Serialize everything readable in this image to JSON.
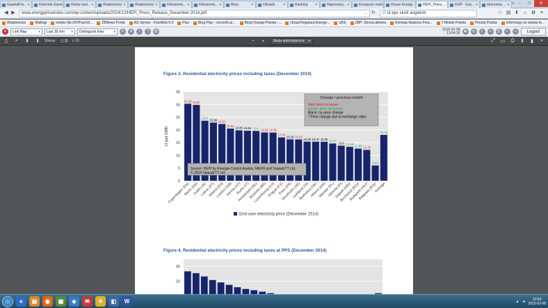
{
  "tabs": [
    "GazetaPra...",
    "Dziennik Gazet...",
    "Dania nast...",
    "Wiadomości",
    "Wiadomości",
    "Dokument...",
    "Dokument...",
    "Bosy",
    "Obrazki",
    "Ranking",
    "Najnowszy...",
    "European resid...",
    "House Energy ...",
    "HEPI_Press_...",
    "DGP - Gaz...",
    "ekonomia ..."
  ],
  "nav": {
    "url": "www.energypriceindex.com/wp-content/uploads/2014/12/HEPI_Press_Release_December-2014.pdf",
    "search": "ot pps skrót angielski"
  },
  "bookmarks": [
    "Wiadomości",
    "Mailingi",
    "Indeks file:///////Faz1/d...",
    "ZBNews Portal",
    "AG Serwis - FotoWeb 6.0",
    "Plus",
    "Blog Play - rzecznik pr...",
    "Blogi Orange Polska -...",
    "Urząd Regulacji Energe...",
    "UKE",
    "ZBP: Strona główna",
    "Komisja Nadzoru Fina...",
    "T-Mobile Polska",
    "Poczta Polska",
    "Informacje ze świata te..."
  ],
  "addon": {
    "map": "Link Map",
    "range": "Last 30 min",
    "mode": "Distinguish links",
    "date": "2015-01-08",
    "time": "13:54:35",
    "logout": "Logout"
  },
  "pdf": {
    "page_label": "Strona:",
    "page": "5",
    "of": "z 10",
    "zoom": "Skala automatyczna"
  },
  "doc": {
    "fig3_title": "Figure 3. Residential electricity prices including taxes (December 2014)",
    "fig4_title": "Figure 4. Residential electricity prices including taxes at PPS (December 2014)"
  },
  "chart_data": [
    {
      "type": "bar",
      "title": "Figure 3. Residential electricity prices including taxes (December 2014)",
      "ylabel": "ct per kWh",
      "ylim": [
        0,
        35
      ],
      "yticks": [
        0,
        5,
        10,
        15,
        20,
        25,
        30,
        35
      ],
      "categories": [
        "Copenhagen (DK)",
        "Berlin (DE)",
        "Dublin (IE)",
        "Lisbon (PT)",
        "Madrid (ES)",
        "London (GB)",
        "Vienna (AT)",
        "Rome (IT)",
        "Amsterdam (NL)",
        "Brussels (BE)",
        "Luxembourg (LU)",
        "Prague (CZ)",
        "Paris (FR)",
        "Stockholm (SE)",
        "Ljubljana (SI)",
        "Bratislava (SK)",
        "Athens (GR)",
        "Warsaw (PL)",
        "Helsinki (FI)",
        "Zagreb (HR)*",
        "Bucharest (RO)*",
        "Budapest (HU)*",
        "Belgrade (RS)*",
        "Average"
      ],
      "series": [
        {
          "name": "End-user electricity price (December 2014)",
          "values": [
            30.28,
            29.87,
            23.6,
            22.86,
            22.31,
            20.53,
            19.85,
            19.69,
            19.6,
            18.99,
            18.95,
            17.05,
            16.29,
            16.25,
            15.38,
            15.37,
            15.35,
            14.67,
            13.8,
            13.35,
            12.66,
            12.15,
            6.02,
            18.04
          ],
          "label_colors": [
            "#d41f1f",
            "#d41f1f",
            "#22a84a",
            "#000000",
            "#d41f1f",
            "#d41f1f",
            "#000000",
            "#000000",
            "#22a84a",
            "#d41f1f",
            "#d41f1f",
            "#d41f1f",
            "#000000",
            "#d41f1f",
            "#000000",
            "#000000",
            "#000000",
            "#22a84a",
            "#000000",
            "#22a84a",
            "#22a84a",
            "#d41f1f",
            "#22a84a",
            "#22a84a"
          ]
        }
      ],
      "legend_box": {
        "title": "Change / previous month",
        "lines": [
          {
            "text": "Red: price increase",
            "color": "#d41f1f"
          },
          {
            "text": "Green: price decrease",
            "color": "#22a84a"
          },
          {
            "text": "Black: no price change",
            "color": "#000000"
          },
          {
            "text": "* Price change due to exchange rates",
            "color": "#000000"
          }
        ]
      },
      "source_box": [
        "Source: HEPI by Energie-Control Austria, MEKH and VaasaETT Ltd.",
        "© 2014 VaasaETT Ltd."
      ],
      "bar_color": "#16256b",
      "grid": true
    },
    {
      "type": "bar",
      "title": "Figure 4. Residential electricity prices including taxes at PPS (December 2014)",
      "yticks": [
        20,
        25,
        30
      ],
      "ylim": [
        20,
        30
      ],
      "values": [
        28.3,
        27.7,
        26.6,
        25.4,
        24.6,
        23.8,
        23.0,
        22.4,
        22.0,
        21.5,
        21.0,
        20.6,
        20.3,
        20.1,
        20.05,
        19.9,
        19.8,
        19.6,
        19.5,
        19.3,
        19.2,
        19.0,
        18.9,
        21.0
      ],
      "bar_color": "#16256b"
    }
  ],
  "taskbar": {
    "time": "13:54",
    "date": "2015-01-08"
  }
}
